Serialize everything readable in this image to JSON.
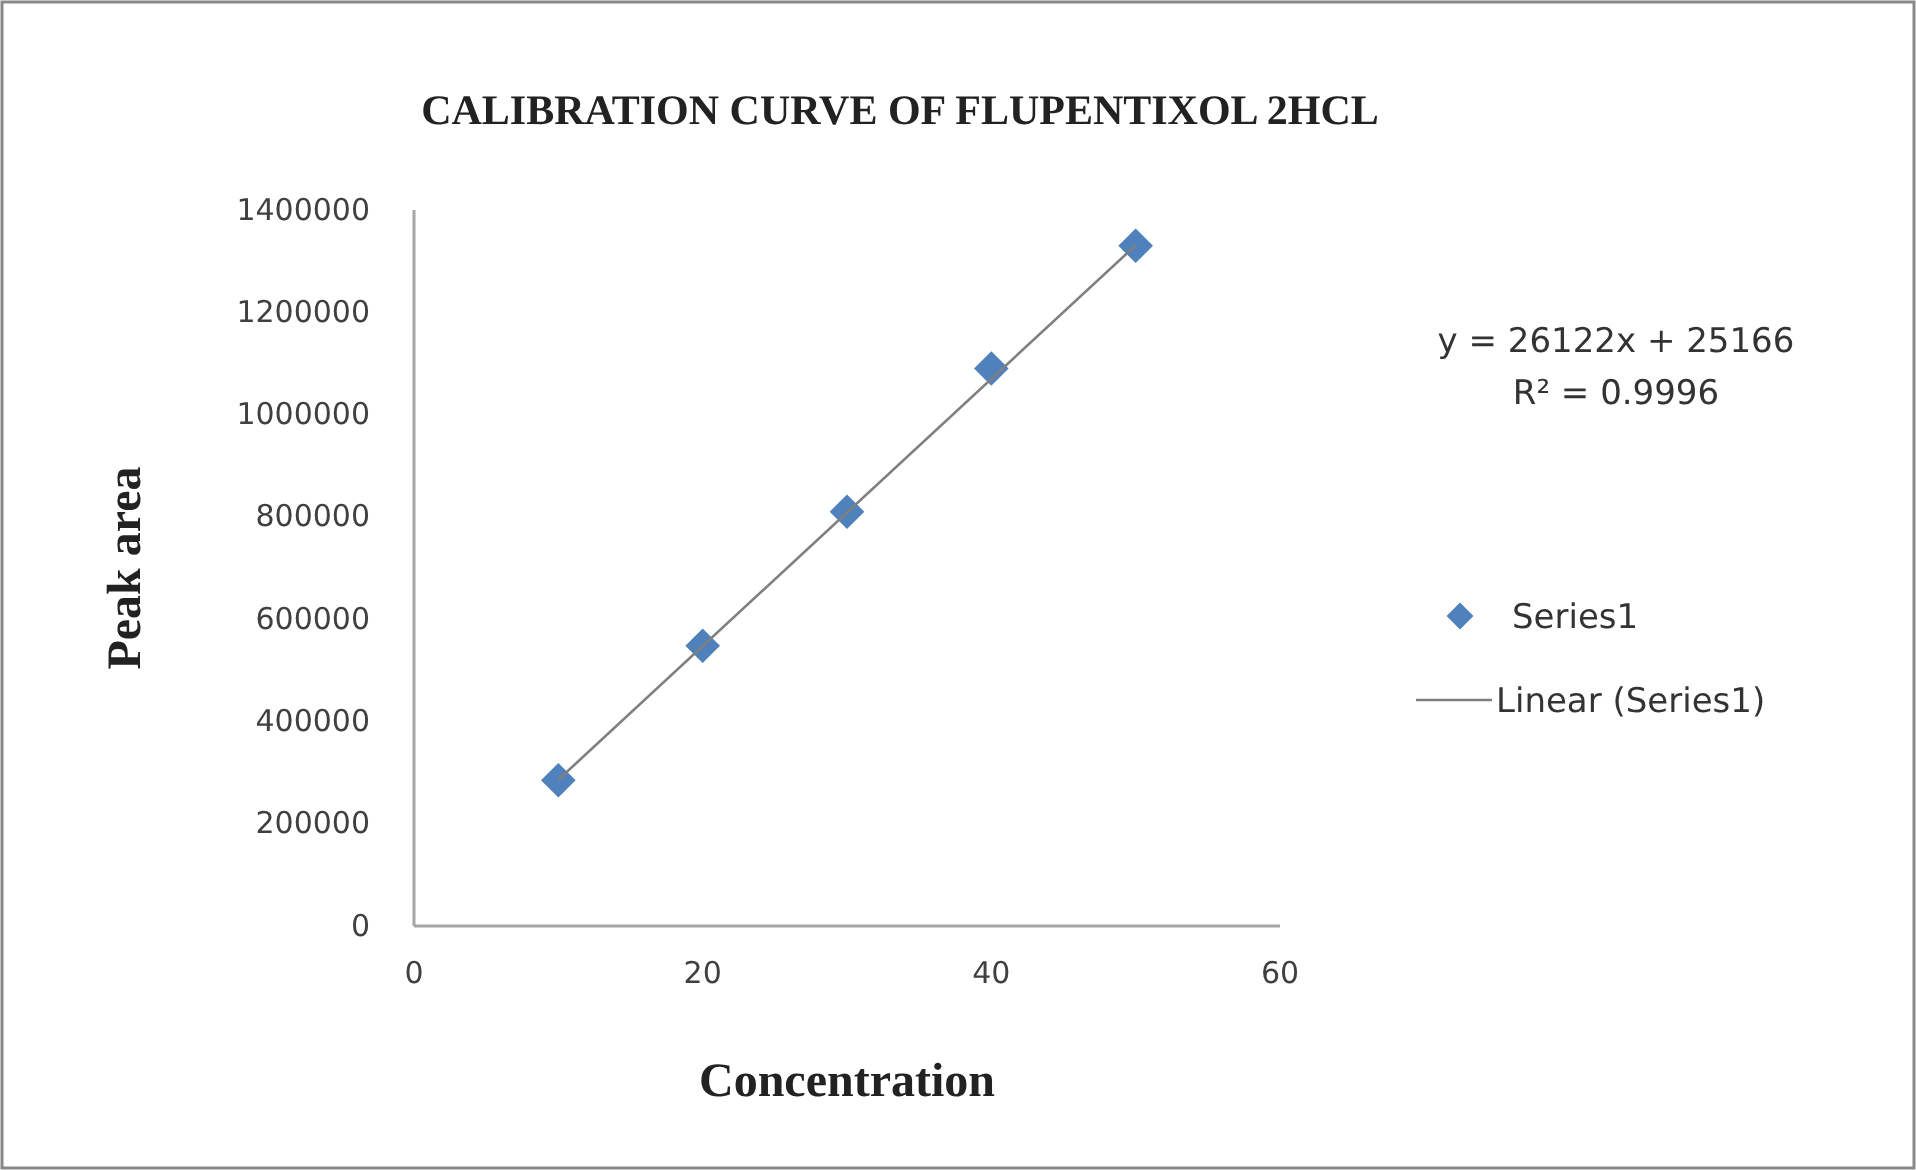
{
  "chart_data": {
    "type": "scatter",
    "title": "CALIBRATION CURVE OF FLUPENTIXOL 2HCL",
    "xlabel": "Concentration",
    "ylabel": "Peak area",
    "xlim": [
      0,
      60
    ],
    "xticks": [
      0,
      20,
      40,
      60
    ],
    "ylim": [
      0,
      1400000
    ],
    "yticks": [
      0,
      200000,
      400000,
      600000,
      800000,
      1000000,
      1200000,
      1400000
    ],
    "grid": false,
    "legend": "right",
    "annotations": [
      "y = 26122x + 25166",
      "R² = 0.9996"
    ],
    "series": [
      {
        "name": "Series1",
        "marker": "diamond",
        "color": "#4f81bd",
        "x": [
          10,
          20,
          30,
          40,
          50
        ],
        "values": [
          285000,
          548000,
          810000,
          1090000,
          1330000
        ]
      },
      {
        "name": "Linear (Series1)",
        "type": "line",
        "marker": "none",
        "line_style": "solid",
        "color": "#7f7f7f",
        "x": [
          10,
          50
        ],
        "values": [
          286000,
          1331000
        ]
      }
    ]
  }
}
